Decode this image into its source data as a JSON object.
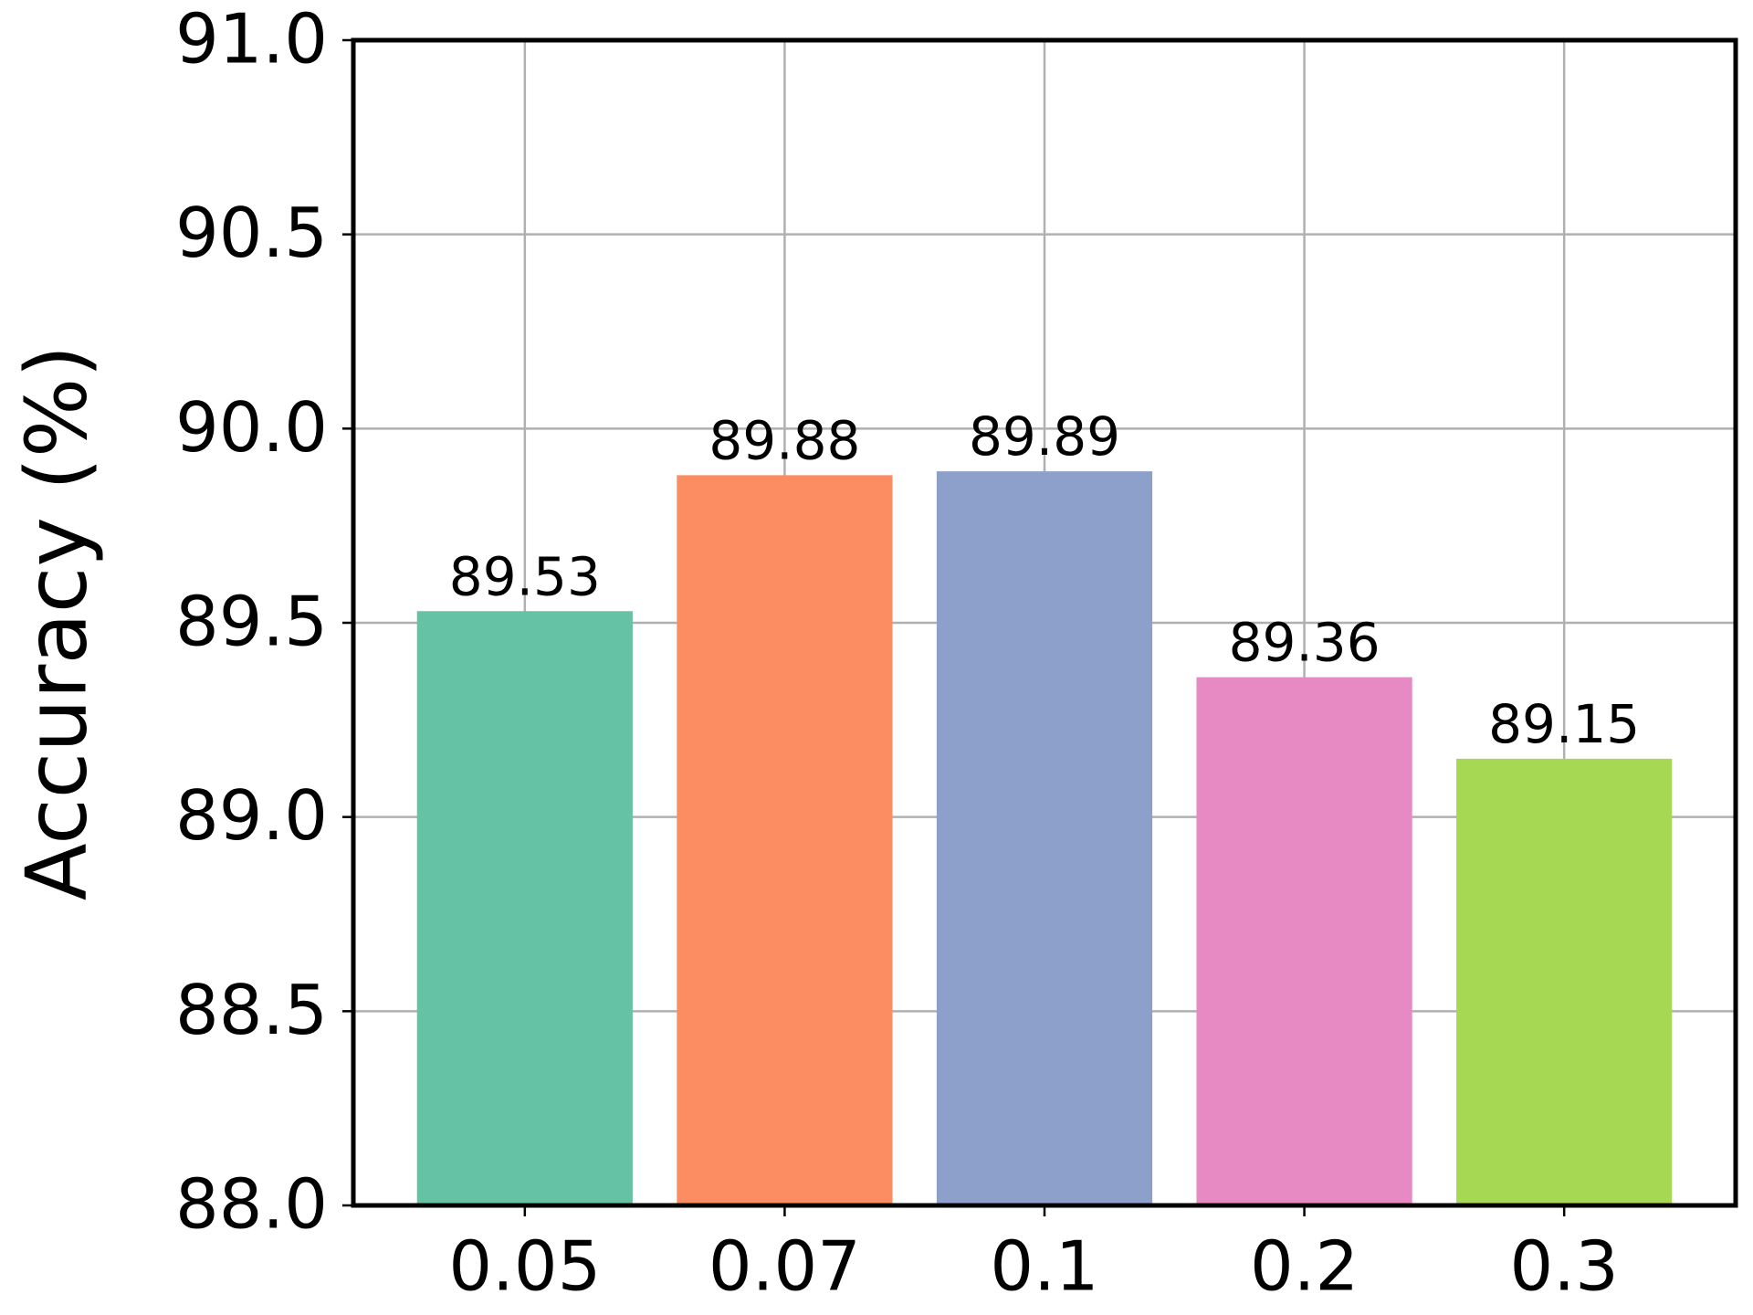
{
  "chart_data": {
    "type": "bar",
    "y_label": "Accuracy (%)",
    "categories": [
      "0.05",
      "0.07",
      "0.1",
      "0.2",
      "0.3"
    ],
    "values": [
      89.53,
      89.88,
      89.89,
      89.36,
      89.15
    ],
    "colors": [
      "#66c2a5",
      "#fc8d62",
      "#8da0cb",
      "#e78ac3",
      "#a6d854"
    ],
    "ylim": [
      88,
      91
    ],
    "yticks": [
      {
        "value": 88,
        "label": "88.0"
      },
      {
        "value": 88.5,
        "label": "88.5"
      },
      {
        "value": 89,
        "label": "89.0"
      },
      {
        "value": 89.5,
        "label": "89.5"
      },
      {
        "value": 90,
        "label": "90.0"
      },
      {
        "value": 90.5,
        "label": "90.5"
      },
      {
        "value": 91,
        "label": "91.0"
      }
    ],
    "grid": true
  }
}
